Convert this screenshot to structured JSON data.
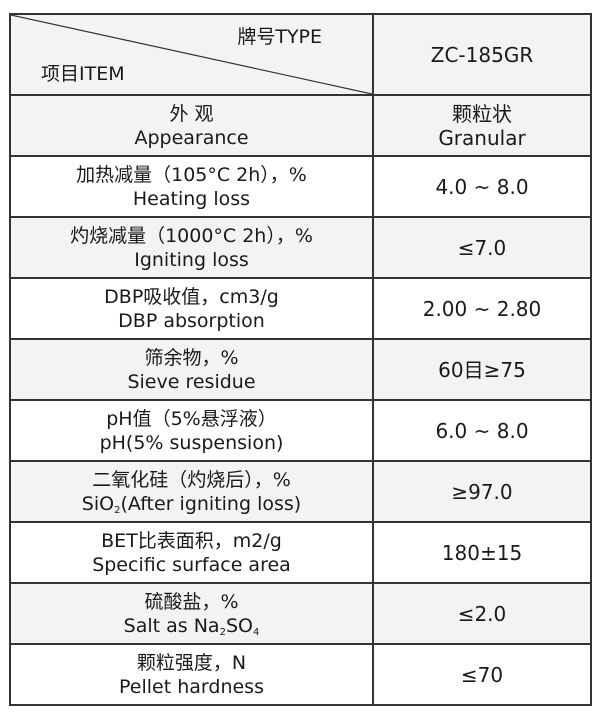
{
  "header": {
    "type_label": "牌号TYPE",
    "item_label": "项目ITEM",
    "product": "ZC-185GR"
  },
  "rows": [
    {
      "cn": "外  观",
      "en": "Appearance",
      "value_cn": "颗粒状",
      "value": "Granular"
    },
    {
      "cn": "加热减量（105°C 2h），%",
      "en": "Heating loss",
      "value": "4.0 ~ 8.0"
    },
    {
      "cn": "灼烧减量（1000°C 2h），%",
      "en": "Igniting loss",
      "value": "≤7.0"
    },
    {
      "cn": "DBP吸收值，cm3/g",
      "en": "DBP absorption",
      "value": "2.00 ~ 2.80"
    },
    {
      "cn": "筛余物，%",
      "en": "Sieve residue",
      "value": "60目≥75"
    },
    {
      "cn": "pH值（5%悬浮液）",
      "en": "pH(5% suspension)",
      "value": "6.0 ~ 8.0"
    },
    {
      "cn": "二氧化硅（灼烧后），%",
      "en_pre": "SiO",
      "en_sub": "2",
      "en_post": "(After igniting loss)",
      "value": "≥97.0"
    },
    {
      "cn": "BET比表面积，m2/g",
      "en": "Specific surface area",
      "value": "180±15"
    },
    {
      "cn": "硫酸盐，%",
      "en_pre": "Salt as Na",
      "en_sub": "2",
      "en_mid": "SO",
      "en_sub2": "4",
      "value": "≤2.0"
    },
    {
      "cn": "颗粒强度，N",
      "en": "Pellet hardness",
      "value": "≤70"
    }
  ]
}
